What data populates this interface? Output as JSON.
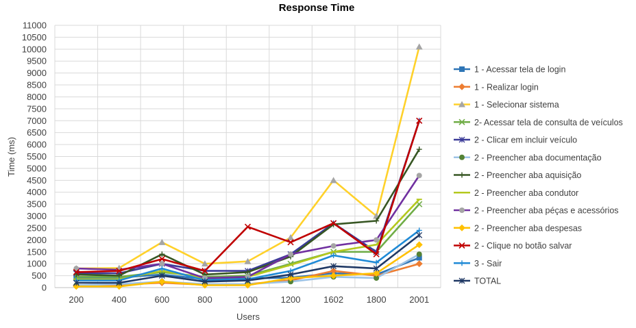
{
  "chart_data": {
    "type": "line",
    "title": "Response Time",
    "xlabel": "Users",
    "ylabel": "Time (ms)",
    "categories": [
      "200",
      "400",
      "600",
      "800",
      "1000",
      "1200",
      "1602",
      "1800",
      "2001"
    ],
    "ylim": [
      0,
      11000
    ],
    "ytick_step": 500,
    "grid": true,
    "legend_position": "right",
    "series": [
      {
        "name": "1 - Acessar tela de login",
        "color": "#2e75b6",
        "marker": "square",
        "values": [
          400,
          420,
          550,
          350,
          380,
          420,
          600,
          550,
          1250
        ]
      },
      {
        "name": "1 - Realizar login",
        "color": "#ed7d31",
        "marker": "diamond",
        "values": [
          100,
          120,
          200,
          120,
          150,
          300,
          700,
          500,
          1000
        ]
      },
      {
        "name": "1 - Selecionar sistema",
        "color": "#ffd12a",
        "marker": "triangle",
        "values": [
          800,
          820,
          1900,
          1000,
          1100,
          2100,
          4500,
          3000,
          10100
        ]
      },
      {
        "name": "2- Acessar tela de consulta de veículos",
        "color": "#70ad47",
        "marker": "x",
        "values": [
          450,
          450,
          650,
          450,
          500,
          1000,
          1500,
          1500,
          3500
        ]
      },
      {
        "name": "2 - Clicar em incluir veículo",
        "color": "#3b3b98",
        "marker": "star",
        "values": [
          600,
          600,
          1000,
          700,
          700,
          1400,
          2700,
          1500,
          7000
        ]
      },
      {
        "name": "2 - Preencher aba documentação",
        "color": "#9dc3e6",
        "marker": "circle",
        "values": [
          100,
          150,
          250,
          150,
          150,
          250,
          450,
          400,
          1400
        ]
      },
      {
        "name": "2 - Preencher aba aquisição",
        "color": "#375623",
        "marker": "plus",
        "values": [
          550,
          500,
          1400,
          550,
          650,
          1300,
          2650,
          2800,
          5800
        ]
      },
      {
        "name": "2 - Preencher aba condutor",
        "color": "#b4c81e",
        "marker": "dash",
        "values": [
          350,
          350,
          700,
          400,
          450,
          950,
          1500,
          1800,
          3700
        ]
      },
      {
        "name": "2 - Preencher aba péças e acessórios",
        "color": "#7030a0",
        "marker": "circle",
        "values": [
          800,
          750,
          1000,
          400,
          450,
          1400,
          1750,
          2000,
          4700
        ]
      },
      {
        "name": "2 - Preencher aba despesas",
        "color": "#ffc000",
        "marker": "diamond",
        "values": [
          50,
          50,
          250,
          100,
          100,
          400,
          500,
          600,
          1800
        ]
      },
      {
        "name": "2 - Clique no botão salvar",
        "color": "#c00000",
        "marker": "x",
        "values": [
          650,
          700,
          1200,
          700,
          2550,
          1900,
          2700,
          1400,
          7000
        ]
      },
      {
        "name": "3 - Sair",
        "color": "#1f8ad6",
        "marker": "plus",
        "values": [
          300,
          300,
          800,
          300,
          350,
          700,
          1350,
          1050,
          2400
        ]
      },
      {
        "name": "TOTAL",
        "color": "#1f3864",
        "marker": "star",
        "values": [
          200,
          200,
          500,
          250,
          300,
          550,
          900,
          800,
          2200
        ]
      }
    ]
  }
}
